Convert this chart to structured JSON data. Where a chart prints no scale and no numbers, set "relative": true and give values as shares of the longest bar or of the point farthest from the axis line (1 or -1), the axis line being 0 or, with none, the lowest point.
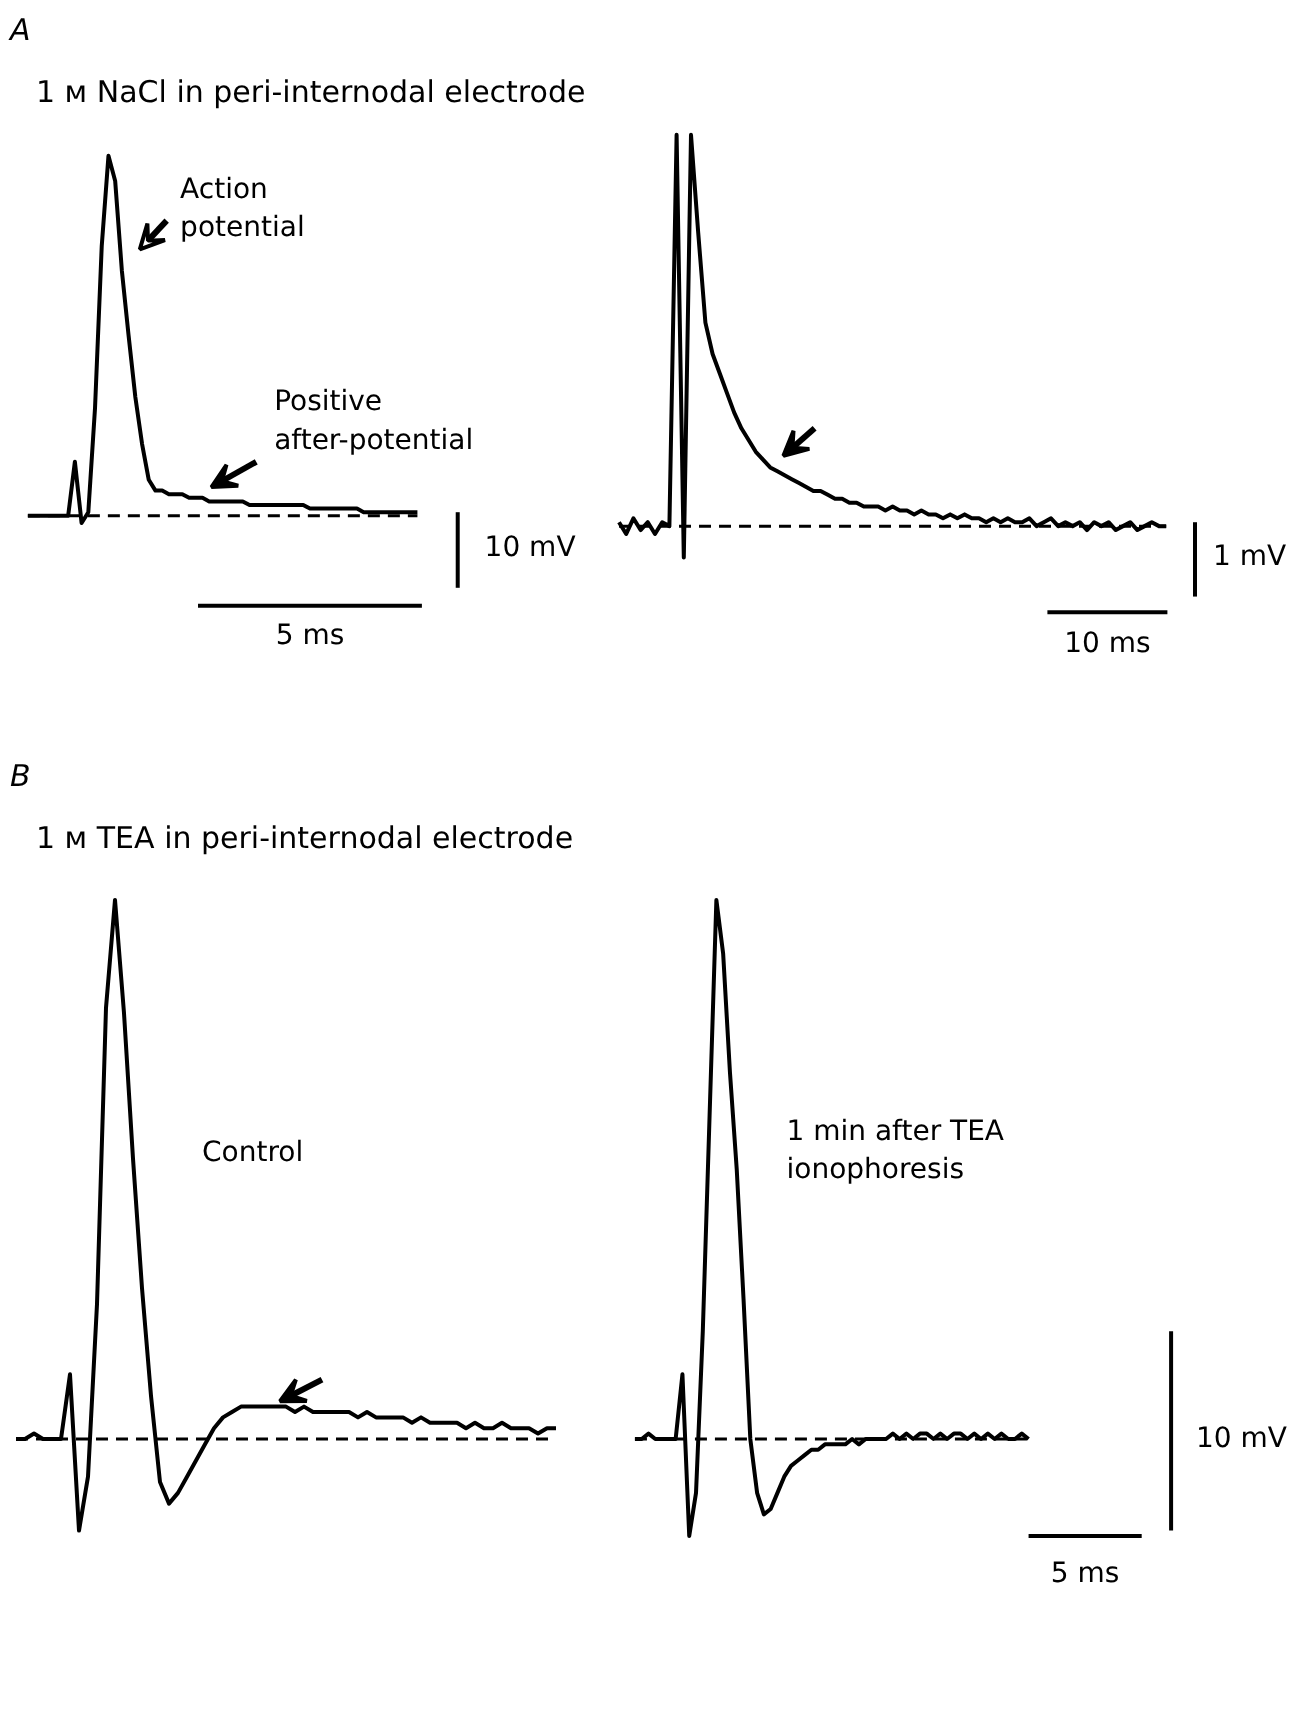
{
  "chart_data": [
    {
      "type": "line",
      "relative": true,
      "tick_labels": false,
      "title": "1 ᴍ NaCl in peri-internodal electrode",
      "categories": [
        null,
        null,
        null,
        null,
        null,
        null,
        null,
        null,
        null,
        null,
        null,
        null,
        null,
        null,
        null,
        null,
        null,
        null,
        null,
        null,
        null,
        null,
        null,
        null,
        null,
        null,
        null,
        null,
        null,
        null,
        null,
        null,
        null,
        null,
        null,
        null,
        null,
        null,
        null,
        null,
        null,
        null,
        null,
        null,
        null,
        null,
        null,
        null,
        null,
        null,
        null,
        null,
        null,
        null,
        null,
        null,
        null,
        null,
        null
      ],
      "series": [
        {
          "color": "#000000",
          "values": [
            0,
            0,
            0,
            0,
            0,
            0,
            0,
            0.15,
            -0.02,
            0.01,
            0.3,
            0.75,
            1.0,
            0.93,
            0.68,
            0.5,
            0.33,
            0.2,
            0.1,
            0.07,
            0.07,
            0.06,
            0.06,
            0.06,
            0.05,
            0.05,
            0.05,
            0.04,
            0.04,
            0.04,
            0.04,
            0.04,
            0.04,
            0.03,
            0.03,
            0.03,
            0.03,
            0.03,
            0.03,
            0.03,
            0.03,
            0.03,
            0.02,
            0.02,
            0.02,
            0.02,
            0.02,
            0.02,
            0.02,
            0.02,
            0.01,
            0.01,
            0.01,
            0.01,
            0.01,
            0.01,
            0.01,
            0.01,
            0.01
          ]
        }
      ],
      "ref_lines": [
        {
          "axis": "y",
          "value": 0,
          "line_style": "dashed"
        }
      ],
      "annotations": [
        "A",
        "Action\npotential",
        "Positive\nafter-potential",
        "10 mV",
        "5 ms"
      ]
    },
    {
      "type": "line",
      "relative": true,
      "tick_labels": false,
      "categories": [
        null,
        null,
        null,
        null,
        null,
        null,
        null,
        null,
        null,
        null,
        null,
        null,
        null,
        null,
        null,
        null,
        null,
        null,
        null,
        null,
        null,
        null,
        null,
        null,
        null,
        null,
        null,
        null,
        null,
        null,
        null,
        null,
        null,
        null,
        null,
        null,
        null,
        null,
        null,
        null,
        null,
        null,
        null,
        null,
        null,
        null,
        null,
        null,
        null,
        null,
        null,
        null,
        null,
        null,
        null,
        null,
        null,
        null,
        null,
        null,
        null,
        null,
        null,
        null,
        null,
        null,
        null,
        null,
        null,
        null,
        null,
        null,
        null,
        null,
        null,
        null,
        null
      ],
      "series": [
        {
          "color": "#000000",
          "values": [
            0.01,
            -0.02,
            0.02,
            -0.01,
            0.01,
            -0.02,
            0.01,
            0,
            1.0,
            -0.08,
            1.0,
            0.75,
            0.52,
            0.44,
            0.39,
            0.34,
            0.29,
            0.25,
            0.22,
            0.19,
            0.17,
            0.15,
            0.14,
            0.13,
            0.12,
            0.11,
            0.1,
            0.09,
            0.09,
            0.08,
            0.07,
            0.07,
            0.06,
            0.06,
            0.05,
            0.05,
            0.05,
            0.04,
            0.05,
            0.04,
            0.04,
            0.03,
            0.04,
            0.03,
            0.03,
            0.02,
            0.03,
            0.02,
            0.03,
            0.02,
            0.02,
            0.01,
            0.02,
            0.01,
            0.02,
            0.01,
            0.01,
            0.02,
            0,
            0.01,
            0.02,
            0,
            0.01,
            0,
            0.01,
            -0.01,
            0.01,
            0,
            0.01,
            -0.01,
            0,
            0.01,
            -0.01,
            0,
            0.01,
            0,
            0
          ]
        }
      ],
      "ref_lines": [
        {
          "axis": "y",
          "value": 0,
          "line_style": "dashed"
        }
      ],
      "annotations": [
        "1 mV",
        "10 ms"
      ]
    },
    {
      "type": "line",
      "relative": true,
      "tick_labels": false,
      "title": "1 ᴍ TEA in peri-internodal electrode",
      "categories": [
        null,
        null,
        null,
        null,
        null,
        null,
        null,
        null,
        null,
        null,
        null,
        null,
        null,
        null,
        null,
        null,
        null,
        null,
        null,
        null,
        null,
        null,
        null,
        null,
        null,
        null,
        null,
        null,
        null,
        null,
        null,
        null,
        null,
        null,
        null,
        null,
        null,
        null,
        null,
        null,
        null,
        null,
        null,
        null,
        null,
        null,
        null,
        null,
        null,
        null,
        null,
        null,
        null,
        null,
        null,
        null,
        null,
        null,
        null,
        null,
        null
      ],
      "series": [
        {
          "color": "#000000",
          "values": [
            0,
            0,
            0.01,
            0,
            0,
            0,
            0.12,
            -0.17,
            -0.07,
            0.25,
            0.8,
            1.0,
            0.79,
            0.52,
            0.28,
            0.08,
            -0.08,
            -0.12,
            -0.1,
            -0.07,
            -0.04,
            -0.01,
            0.02,
            0.04,
            0.05,
            0.06,
            0.06,
            0.06,
            0.06,
            0.06,
            0.06,
            0.05,
            0.06,
            0.05,
            0.05,
            0.05,
            0.05,
            0.05,
            0.04,
            0.05,
            0.04,
            0.04,
            0.04,
            0.04,
            0.03,
            0.04,
            0.03,
            0.03,
            0.03,
            0.03,
            0.02,
            0.03,
            0.02,
            0.02,
            0.03,
            0.02,
            0.02,
            0.02,
            0.01,
            0.02,
            0.02
          ]
        }
      ],
      "ref_lines": [
        {
          "axis": "y",
          "value": 0,
          "line_style": "dashed"
        }
      ],
      "annotations": [
        "B",
        "Control"
      ]
    },
    {
      "type": "line",
      "relative": true,
      "tick_labels": false,
      "categories": [
        null,
        null,
        null,
        null,
        null,
        null,
        null,
        null,
        null,
        null,
        null,
        null,
        null,
        null,
        null,
        null,
        null,
        null,
        null,
        null,
        null,
        null,
        null,
        null,
        null,
        null,
        null,
        null,
        null,
        null,
        null,
        null,
        null,
        null,
        null,
        null,
        null,
        null,
        null,
        null,
        null,
        null,
        null,
        null,
        null,
        null,
        null,
        null,
        null,
        null,
        null,
        null,
        null,
        null,
        null,
        null,
        null,
        null,
        null
      ],
      "series": [
        {
          "color": "#000000",
          "values": [
            0,
            0,
            0.01,
            0,
            0,
            0,
            0,
            0.12,
            -0.18,
            -0.1,
            0.2,
            0.6,
            1.0,
            0.9,
            0.68,
            0.5,
            0.26,
            0,
            -0.1,
            -0.14,
            -0.13,
            -0.1,
            -0.07,
            -0.05,
            -0.04,
            -0.03,
            -0.02,
            -0.02,
            -0.01,
            -0.01,
            -0.01,
            -0.01,
            0,
            -0.01,
            0,
            0,
            0,
            0,
            0.01,
            0,
            0.01,
            0,
            0.01,
            0.01,
            0,
            0.01,
            0,
            0.01,
            0.01,
            0,
            0.01,
            0,
            0.01,
            0,
            0.01,
            0,
            0,
            0.01,
            0
          ]
        }
      ],
      "ref_lines": [
        {
          "axis": "y",
          "value": 0,
          "line_style": "dashed"
        }
      ],
      "annotations": [
        "1 min after TEA\nionophoresis",
        "10 mV",
        "5 ms"
      ]
    }
  ]
}
